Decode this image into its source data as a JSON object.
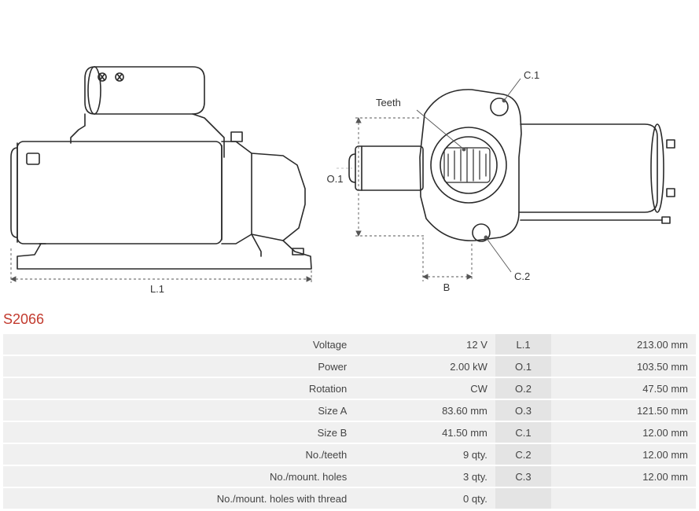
{
  "partNumber": "S2066",
  "diagram": {
    "labels": {
      "L1": "L.1",
      "O1": "O.1",
      "B": "B",
      "Teeth": "Teeth",
      "C1": "C.1",
      "C2": "C.2"
    },
    "stroke": "#2a2a2a",
    "thin_stroke": "#555555",
    "stroke_width": 1.6,
    "thin_width": 0.9
  },
  "specs": {
    "rows": [
      {
        "label": "Voltage",
        "value": "12 V",
        "dimLabel": "L.1",
        "dimValue": "213.00 mm"
      },
      {
        "label": "Power",
        "value": "2.00 kW",
        "dimLabel": "O.1",
        "dimValue": "103.50 mm"
      },
      {
        "label": "Rotation",
        "value": "CW",
        "dimLabel": "O.2",
        "dimValue": "47.50 mm"
      },
      {
        "label": "Size A",
        "value": "83.60 mm",
        "dimLabel": "O.3",
        "dimValue": "121.50 mm"
      },
      {
        "label": "Size B",
        "value": "41.50 mm",
        "dimLabel": "C.1",
        "dimValue": "12.00 mm"
      },
      {
        "label": "No./teeth",
        "value": "9 qty.",
        "dimLabel": "C.2",
        "dimValue": "12.00 mm"
      },
      {
        "label": "No./mount. holes",
        "value": "3 qty.",
        "dimLabel": "C.3",
        "dimValue": "12.00 mm"
      },
      {
        "label": "No./mount. holes with thread",
        "value": "0 qty.",
        "dimLabel": "",
        "dimValue": ""
      }
    ],
    "colors": {
      "row_bg": "#f0f0f0",
      "dim_label_bg": "#e4e4e4",
      "text": "#444444"
    }
  },
  "colors": {
    "partNumber": "#c23a2e",
    "background": "#ffffff"
  }
}
